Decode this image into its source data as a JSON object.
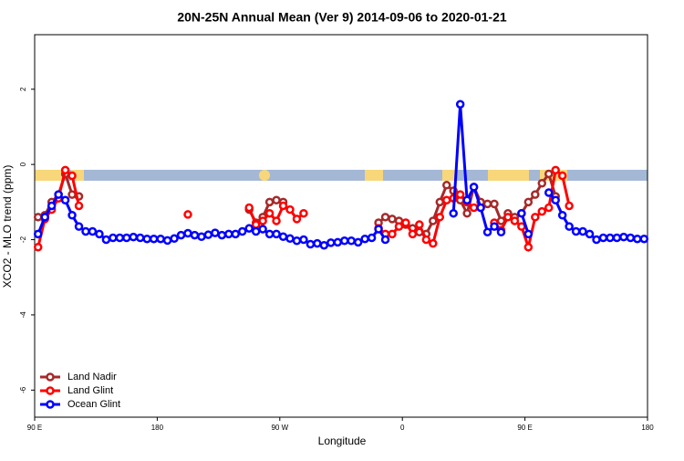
{
  "chart_data": {
    "type": "line",
    "title": "20N-25N Annual Mean (Ver 9)   2014-09-06 to 2020-01-21",
    "x_label": "Longitude",
    "y_label": "XCO2 - MLO trend (ppm)",
    "legend": "bottomleft",
    "xlim": [
      90,
      540
    ],
    "xticks": [
      {
        "value": 90,
        "label": "90 E"
      },
      180,
      {
        "value": 270,
        "label": "90 W"
      },
      {
        "value": 360,
        "label": "0"
      },
      {
        "value": 450,
        "label": "90 E"
      },
      {
        "value": 540,
        "label": "180"
      }
    ],
    "ylim": [
      -6.72,
      3.45
    ],
    "yticks": [
      -6,
      -4,
      -2,
      0,
      2
    ],
    "x": [
      92.5,
      97.5,
      102.5,
      107.5,
      112.5,
      117.5,
      122.5,
      127.5,
      132.5,
      137.5,
      142.5,
      147.5,
      152.5,
      157.5,
      162.5,
      167.5,
      172.5,
      177.5,
      182.5,
      187.5,
      192.5,
      197.5,
      202.5,
      207.5,
      212.5,
      217.5,
      222.5,
      227.5,
      232.5,
      237.5,
      242.5,
      247.5,
      252.5,
      257.5,
      262.5,
      267.5,
      272.5,
      277.5,
      282.5,
      287.5,
      292.5,
      297.5,
      302.5,
      307.5,
      312.5,
      317.5,
      322.5,
      327.5,
      332.5,
      337.5,
      342.5,
      347.5,
      352.5,
      357.5,
      362.5,
      367.5,
      372.5,
      377.5,
      382.5,
      387.5,
      392.5,
      397.5,
      402.5,
      407.5,
      412.5,
      417.5,
      422.5,
      427.5,
      432.5,
      437.5,
      442.5,
      447.5,
      452.5,
      457.5,
      462.5,
      467.5,
      472.5,
      477.5,
      482.5,
      487.5,
      492.5,
      497.5,
      502.5,
      507.5,
      512.5,
      517.5,
      522.5,
      527.5,
      532.5,
      537.5
    ],
    "series": [
      {
        "name": "Land Nadir",
        "color": "#a52a2a",
        "values": [
          -1.4,
          -1.35,
          -1.0,
          -0.8,
          -0.25,
          -0.8,
          -0.85,
          null,
          null,
          null,
          null,
          null,
          null,
          null,
          null,
          null,
          null,
          null,
          null,
          null,
          null,
          null,
          null,
          null,
          null,
          null,
          null,
          null,
          null,
          null,
          null,
          -1.2,
          -1.55,
          -1.4,
          -1.0,
          -0.95,
          -1.0,
          null,
          null,
          null,
          null,
          null,
          null,
          null,
          null,
          null,
          null,
          null,
          null,
          null,
          -1.55,
          -1.4,
          -1.45,
          -1.5,
          -1.6,
          -1.7,
          -1.8,
          -1.85,
          -1.5,
          -1.0,
          -0.55,
          -0.7,
          -0.95,
          -1.3,
          -0.6,
          -1.0,
          -1.05,
          -1.05,
          -1.5,
          -1.3,
          -1.4,
          -1.3,
          -1.0,
          -0.8,
          -0.5,
          -0.25,
          -0.85,
          null,
          null,
          null,
          null,
          null,
          null,
          null,
          null,
          null,
          null,
          null,
          null,
          null
        ]
      },
      {
        "name": "Land Glint",
        "color": "#ff0000",
        "values": [
          -2.2,
          -1.45,
          -1.2,
          -0.9,
          -0.15,
          -0.3,
          -1.1,
          null,
          null,
          null,
          null,
          null,
          null,
          null,
          null,
          null,
          null,
          null,
          null,
          null,
          null,
          null,
          -1.33,
          null,
          null,
          null,
          null,
          null,
          null,
          null,
          null,
          -1.15,
          -1.6,
          -1.5,
          -1.3,
          -1.5,
          -1.1,
          -1.2,
          -1.45,
          -1.3,
          null,
          null,
          null,
          null,
          null,
          null,
          null,
          null,
          null,
          null,
          -1.7,
          -1.85,
          -1.85,
          -1.65,
          -1.55,
          -1.85,
          -1.6,
          -2.0,
          -2.1,
          -1.4,
          -0.95,
          -0.9,
          -0.8,
          -1.0,
          -1.15,
          -1.15,
          null,
          -1.55,
          -1.75,
          -1.4,
          -1.5,
          -1.65,
          -2.2,
          -1.4,
          -1.25,
          -1.15,
          -0.15,
          -0.3,
          -1.1,
          null,
          null,
          null,
          null,
          null,
          null,
          null,
          null,
          null,
          null,
          null
        ]
      },
      {
        "name": "Ocean Glint",
        "color": "#0000ff",
        "values": [
          -1.85,
          -1.4,
          -1.1,
          -0.8,
          -0.95,
          -1.35,
          -1.65,
          -1.78,
          -1.78,
          -1.85,
          -2.0,
          -1.95,
          -1.95,
          -1.95,
          -1.93,
          -1.95,
          -1.98,
          -1.98,
          -1.98,
          -2.02,
          -1.97,
          -1.88,
          -1.83,
          -1.88,
          -1.92,
          -1.87,
          -1.82,
          -1.88,
          -1.85,
          -1.85,
          -1.78,
          -1.7,
          -1.78,
          -1.72,
          -1.85,
          -1.85,
          -1.92,
          -1.97,
          -2.03,
          -2.0,
          -2.12,
          -2.1,
          -2.15,
          -2.08,
          -2.07,
          -2.03,
          -2.03,
          -2.07,
          -1.98,
          -1.95,
          -1.72,
          -2.0,
          null,
          null,
          null,
          null,
          null,
          null,
          null,
          null,
          null,
          -1.3,
          1.6,
          -0.95,
          -0.6,
          -1.15,
          -1.8,
          -1.65,
          -1.8,
          null,
          null,
          -1.3,
          -1.85,
          null,
          null,
          -0.75,
          -0.95,
          -1.35,
          -1.65,
          -1.78,
          -1.78,
          -1.85,
          -2.0,
          -1.95,
          -1.95,
          -1.95,
          -1.93,
          -1.95,
          -1.98,
          -1.98
        ]
      }
    ]
  }
}
